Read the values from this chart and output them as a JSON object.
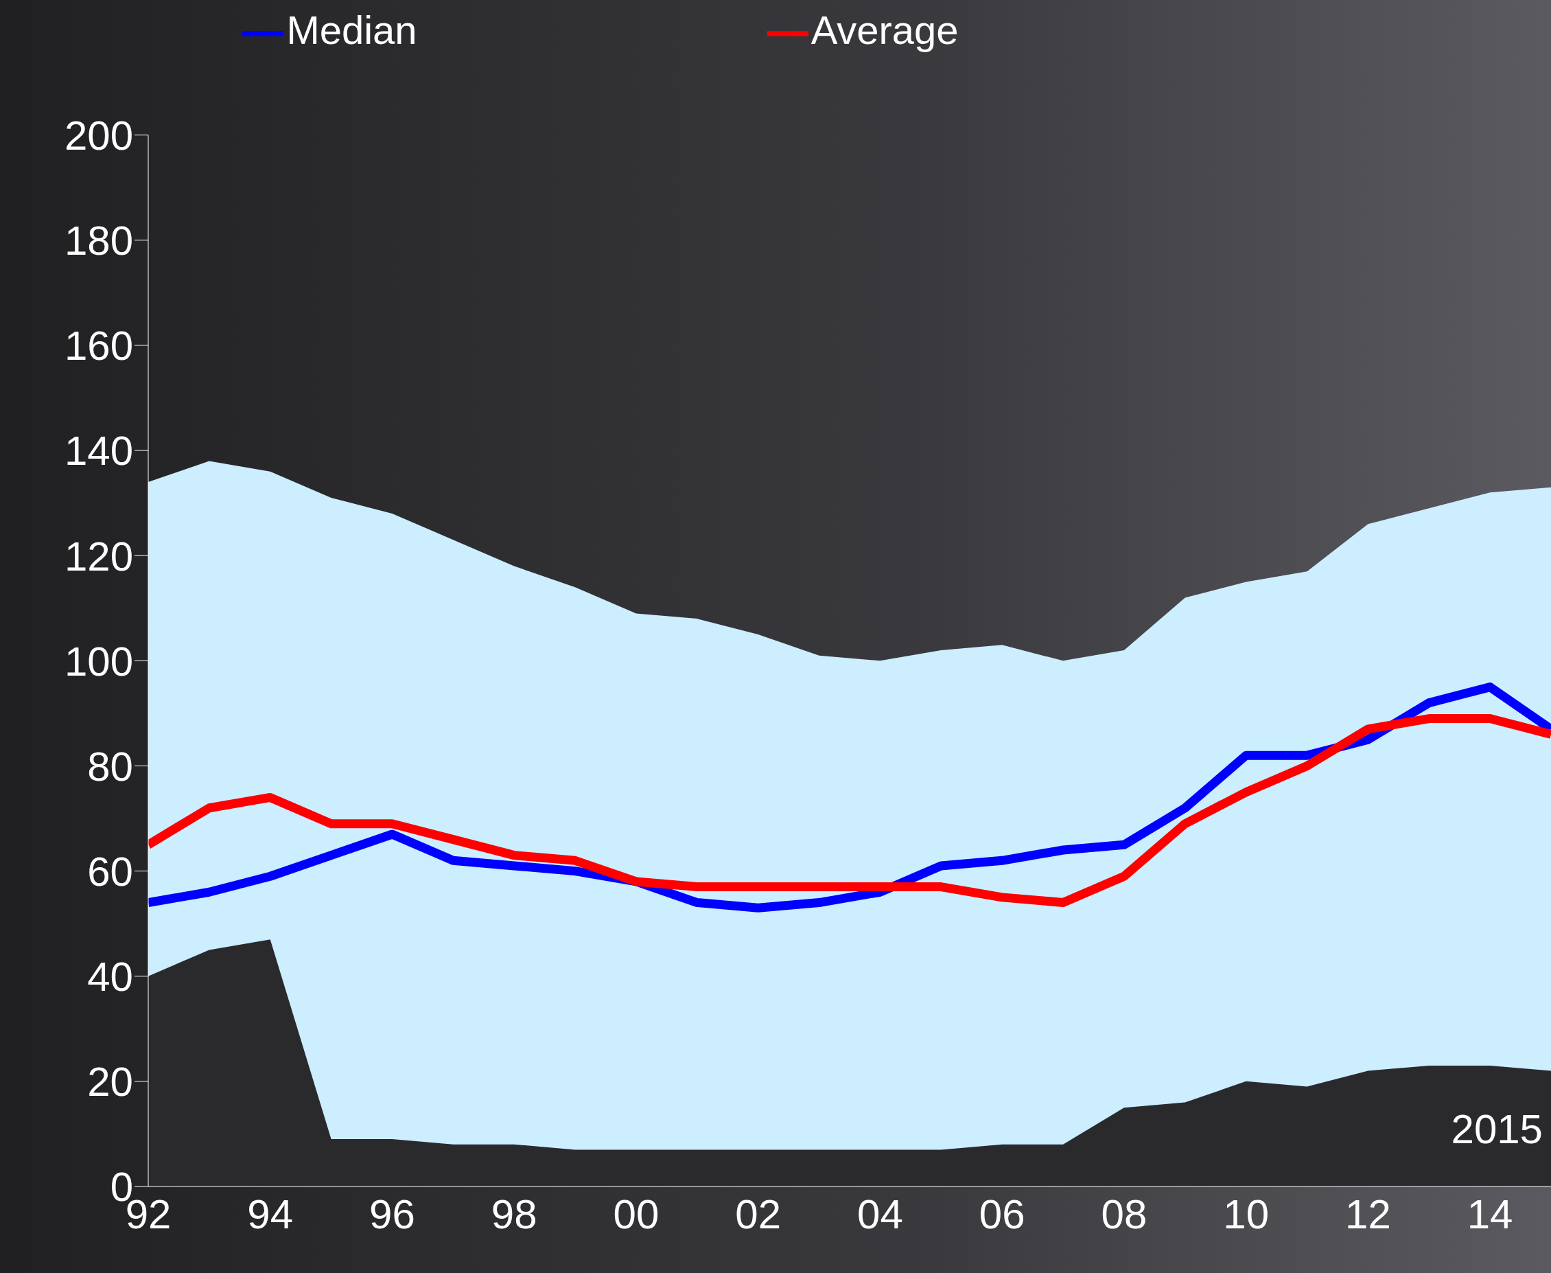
{
  "chart_data": {
    "type": "line",
    "x": [
      1992,
      1993,
      1994,
      1995,
      1996,
      1997,
      1998,
      1999,
      2000,
      2001,
      2002,
      2003,
      2004,
      2005,
      2006,
      2007,
      2008,
      2009,
      2010,
      2011,
      2012,
      2013,
      2014,
      2015
    ],
    "series": [
      {
        "type": "area",
        "color": "#cceeff",
        "values": [
          134,
          138,
          136,
          131,
          128,
          123,
          118,
          114,
          109,
          108,
          105,
          101,
          100,
          102,
          103,
          100,
          102,
          112,
          115,
          117,
          126,
          129,
          132,
          133
        ]
      },
      {
        "type": "area",
        "color": "#2a2a2d",
        "values": [
          40,
          45,
          47,
          9,
          9,
          8,
          8,
          7,
          7,
          7,
          7,
          7,
          7,
          7,
          8,
          8,
          15,
          16,
          20,
          19,
          22,
          23,
          23,
          22
        ]
      },
      {
        "name": "Median",
        "color": "#0000ff",
        "values": [
          54,
          56,
          59,
          63,
          67,
          62,
          61,
          60,
          58,
          54,
          53,
          54,
          56,
          61,
          62,
          64,
          65,
          72,
          82,
          82,
          85,
          92,
          95,
          87
        ]
      },
      {
        "name": "Average",
        "color": "#ff0000",
        "values": [
          65,
          72,
          74,
          69,
          69,
          66,
          63,
          62,
          58,
          57,
          57,
          57,
          57,
          57,
          55,
          54,
          59,
          69,
          75,
          80,
          87,
          89,
          89,
          86
        ]
      }
    ],
    "xlim": [
      1992,
      2015
    ],
    "xticks": [
      {
        "value": 1992,
        "label": "92"
      },
      {
        "value": 1994,
        "label": "94"
      },
      {
        "value": 1996,
        "label": "96"
      },
      {
        "value": 1998,
        "label": "98"
      },
      {
        "value": 2000,
        "label": "00"
      },
      {
        "value": 2002,
        "label": "02"
      },
      {
        "value": 2004,
        "label": "04"
      },
      {
        "value": 2006,
        "label": "06"
      },
      {
        "value": 2008,
        "label": "08"
      },
      {
        "value": 2010,
        "label": "10"
      },
      {
        "value": 2012,
        "label": "12"
      },
      {
        "value": 2014,
        "label": "14"
      }
    ],
    "ylim": [
      0,
      200
    ],
    "yticks": [
      0,
      20,
      40,
      60,
      80,
      100,
      120,
      140,
      160,
      180,
      200
    ],
    "grid": false,
    "legend": "top",
    "marker": "none",
    "line_style": "solid",
    "annotations": [
      "2015"
    ]
  }
}
